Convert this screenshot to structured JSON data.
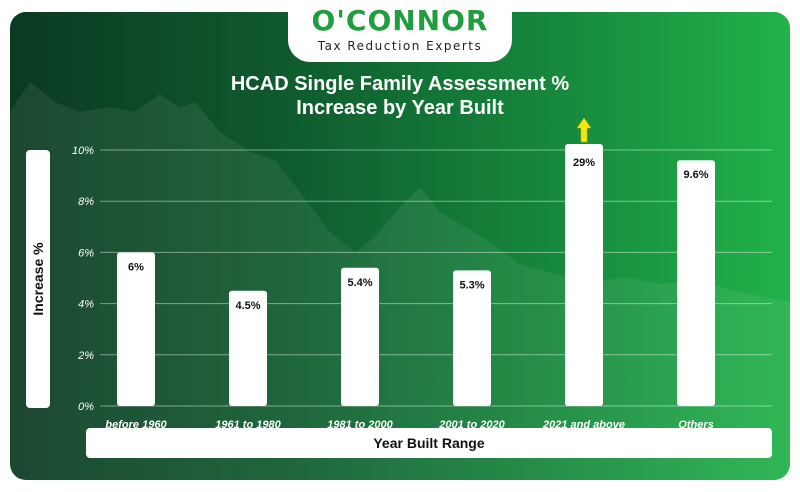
{
  "logo": {
    "name": "O'CONNOR",
    "tagline": "Tax Reduction Experts"
  },
  "colors": {
    "background_dark": "#0b3a22",
    "background_light": "#22b24a",
    "bar": "#ffffff",
    "arrow": "#f5e60a",
    "brand": "#1f9d3f"
  },
  "chart_data": {
    "type": "bar",
    "title": "HCAD Single Family Assessment % Increase by Year Built",
    "title_lines": [
      "HCAD Single Family Assessment %",
      "Increase by Year Built"
    ],
    "xlabel": "Year Built Range",
    "ylabel": "Increase %",
    "categories": [
      "before 1960",
      "1961 to 1980",
      "1981 to 2000",
      "2001 to 2020",
      "2021 and above",
      "Others"
    ],
    "values": [
      6,
      4.5,
      5.4,
      5.3,
      29,
      9.6
    ],
    "data_labels": [
      "6%",
      "4.5%",
      "5.4%",
      "5.3%",
      "29%",
      "9.6%"
    ],
    "ylim": [
      0,
      10
    ],
    "yticks": [
      0,
      2,
      4,
      6,
      8,
      10
    ],
    "ytick_labels": [
      "0%",
      "2%",
      "4%",
      "6%",
      "8%",
      "10%"
    ],
    "grid": true,
    "clipped_categories": [
      "2021 and above"
    ]
  }
}
